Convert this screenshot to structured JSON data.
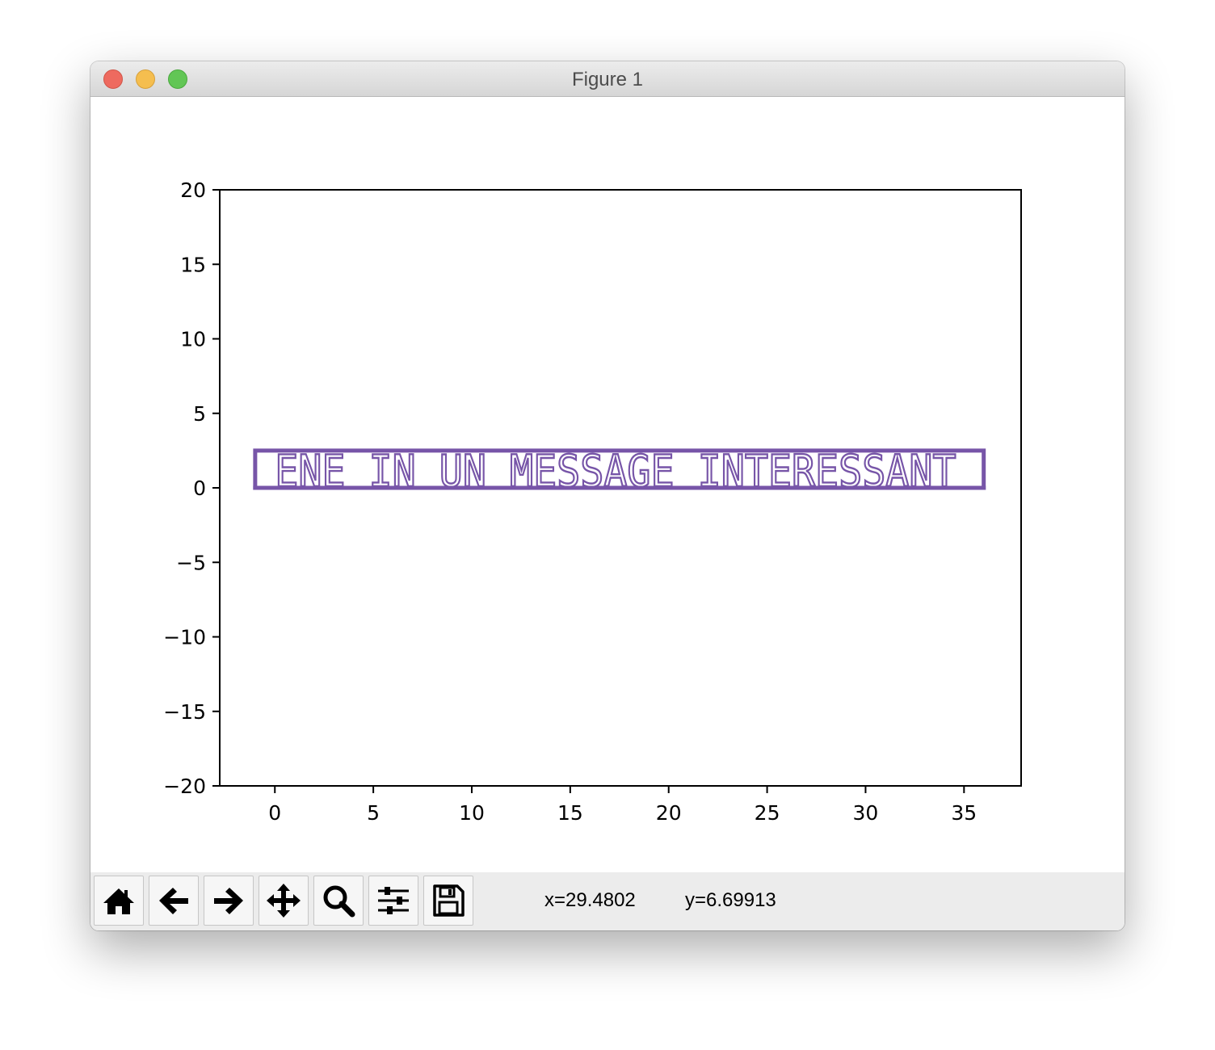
{
  "window": {
    "title": "Figure 1"
  },
  "toolbar": {
    "buttons": [
      {
        "name": "home",
        "icon": "home-icon"
      },
      {
        "name": "back",
        "icon": "arrow-left-icon"
      },
      {
        "name": "forward",
        "icon": "arrow-right-icon"
      },
      {
        "name": "pan",
        "icon": "move-icon"
      },
      {
        "name": "zoom",
        "icon": "magnifier-icon"
      },
      {
        "name": "configure-subplots",
        "icon": "sliders-icon"
      },
      {
        "name": "save",
        "icon": "floppy-disk-icon"
      }
    ],
    "coord_x": "x=29.4802",
    "coord_y": "y=6.69913"
  },
  "chart_data": {
    "type": "line",
    "xlim": [
      -2.8,
      37.9
    ],
    "ylim": [
      -20,
      20
    ],
    "xticks": [
      0,
      5,
      10,
      15,
      20,
      25,
      30,
      35
    ],
    "yticks": [
      20,
      15,
      10,
      5,
      0,
      -5,
      -10,
      -15,
      -20
    ],
    "ytick_labels": [
      "20",
      "15",
      "10",
      "5",
      "0",
      "−5",
      "−10",
      "−15",
      "−20"
    ],
    "xtick_labels": [
      "0",
      "5",
      "10",
      "15",
      "20",
      "25",
      "30",
      "35"
    ],
    "grid": false,
    "line_color": "#7755a8",
    "frame": {
      "x": [
        -1,
        36
      ],
      "y": [
        0,
        2.5
      ]
    },
    "text": "ENE IN UN MESSAGE INTERESSANT",
    "text_x_start": 0,
    "text_x_end": 34.6,
    "text_y_bottom": 0,
    "text_y_top": 2,
    "baseline_y": 0
  }
}
